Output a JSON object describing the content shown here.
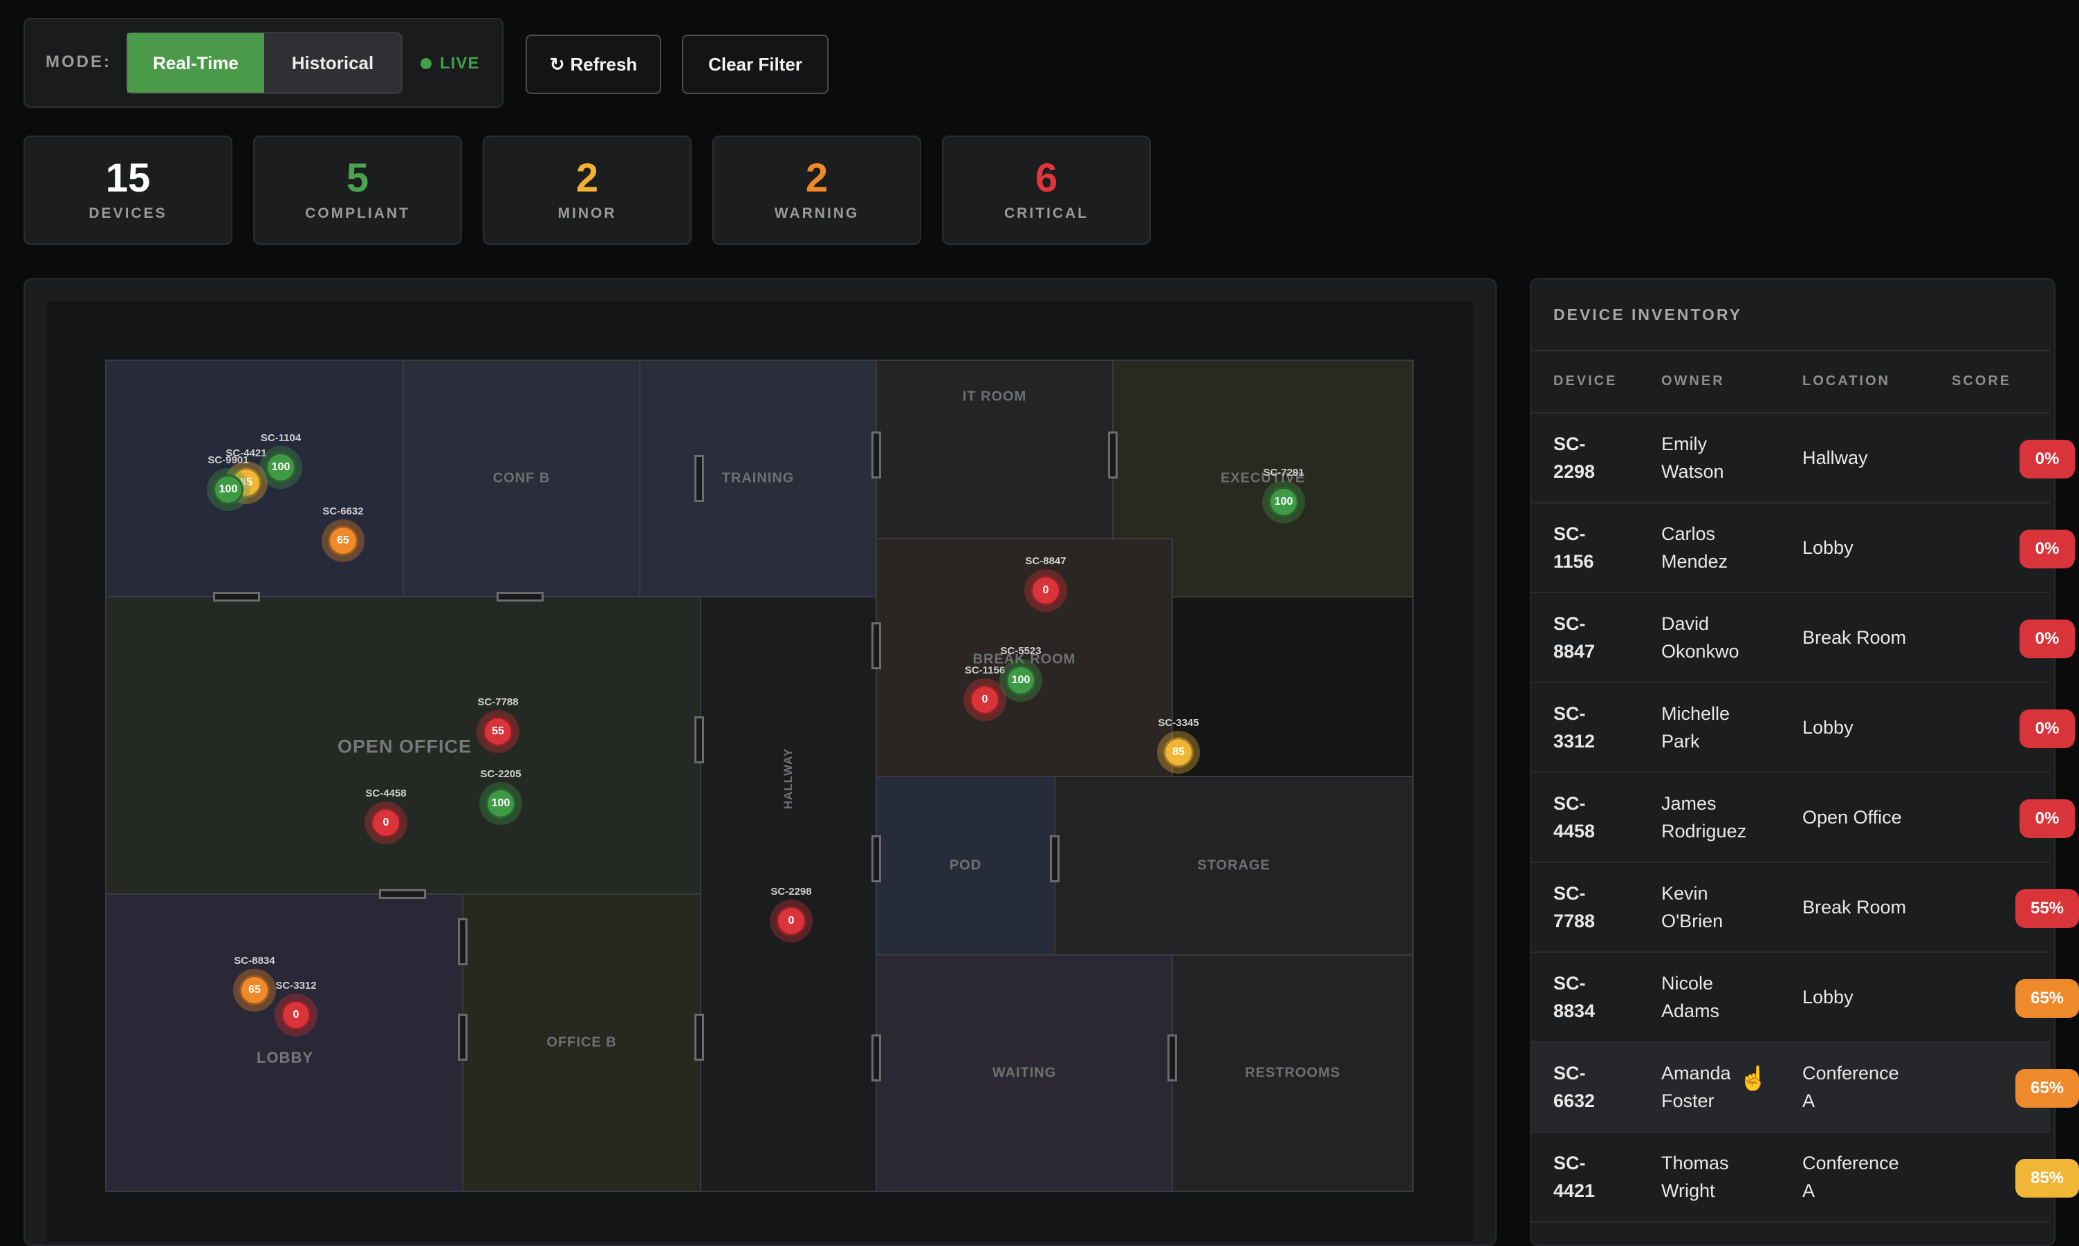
{
  "toolbar": {
    "mode_label": "MODE:",
    "realtime_label": "Real-Time",
    "historical_label": "Historical",
    "live_label": "LIVE",
    "refresh_label": "Refresh",
    "refresh_icon": "↻",
    "clear_label": "Clear Filter"
  },
  "stats": {
    "devices": {
      "value": "15",
      "label": "DEVICES",
      "color": "#ffffff"
    },
    "compliant": {
      "value": "5",
      "label": "COMPLIANT",
      "color": "#4aa34e"
    },
    "minor": {
      "value": "2",
      "label": "MINOR",
      "color": "#f2b233"
    },
    "warning": {
      "value": "2",
      "label": "WARNING",
      "color": "#ef8a2a"
    },
    "critical": {
      "value": "6",
      "label": "CRITICAL",
      "color": "#e2373a"
    }
  },
  "rooms": {
    "conf_b": "CONF B",
    "training": "TRAINING",
    "it_room": "IT ROOM",
    "executive": "EXECUTIVE",
    "break_room": "BREAK ROOM",
    "open_office": "OPEN OFFICE",
    "hallway": "HALLWAY",
    "pod": "POD",
    "storage": "STORAGE",
    "lobby": "LOBBY",
    "office_b": "OFFICE B",
    "waiting": "WAITING",
    "restrooms": "RESTROOMS"
  },
  "devices": [
    {
      "id": "SC-1104",
      "score": "100",
      "status": "compliant"
    },
    {
      "id": "SC-4421",
      "score": "85",
      "status": "minor"
    },
    {
      "id": "SC-9901",
      "score": "100",
      "status": "compliant"
    },
    {
      "id": "SC-6632",
      "score": "65",
      "status": "warning"
    },
    {
      "id": "SC-7291",
      "score": "100",
      "status": "compliant"
    },
    {
      "id": "SC-8847",
      "score": "0",
      "status": "critical"
    },
    {
      "id": "SC-5523",
      "score": "100",
      "status": "compliant"
    },
    {
      "id": "SC-1156",
      "score": "0",
      "status": "critical"
    },
    {
      "id": "SC-3345",
      "score": "85",
      "status": "minor"
    },
    {
      "id": "SC-7788",
      "score": "55",
      "status": "critical"
    },
    {
      "id": "SC-2205",
      "score": "100",
      "status": "compliant"
    },
    {
      "id": "SC-4458",
      "score": "0",
      "status": "critical"
    },
    {
      "id": "SC-2298",
      "score": "0",
      "status": "critical"
    },
    {
      "id": "SC-8834",
      "score": "65",
      "status": "warning"
    },
    {
      "id": "SC-3312",
      "score": "0",
      "status": "critical"
    }
  ],
  "status_colors": {
    "compliant": "#3f9a45",
    "minor": "#f1b636",
    "warning": "#ee8a2b",
    "critical": "#d8343a"
  },
  "inventory": {
    "title": "DEVICE INVENTORY",
    "columns": [
      "DEVICE",
      "OWNER",
      "LOCATION",
      "SCORE"
    ],
    "rows": [
      {
        "device_a": "SC-",
        "device_b": "2298",
        "owner_a": "Emily",
        "owner_b": "Watson",
        "loc_a": "Hallway",
        "loc_b": "",
        "score": "0%",
        "status": "critical"
      },
      {
        "device_a": "SC-",
        "device_b": "1156",
        "owner_a": "Carlos",
        "owner_b": "Mendez",
        "loc_a": "Lobby",
        "loc_b": "",
        "score": "0%",
        "status": "critical"
      },
      {
        "device_a": "SC-",
        "device_b": "8847",
        "owner_a": "David",
        "owner_b": "Okonkwo",
        "loc_a": "Break Room",
        "loc_b": "",
        "score": "0%",
        "status": "critical"
      },
      {
        "device_a": "SC-",
        "device_b": "3312",
        "owner_a": "Michelle",
        "owner_b": "Park",
        "loc_a": "Lobby",
        "loc_b": "",
        "score": "0%",
        "status": "critical"
      },
      {
        "device_a": "SC-",
        "device_b": "4458",
        "owner_a": "James",
        "owner_b": "Rodriguez",
        "loc_a": "Open Office",
        "loc_b": "",
        "score": "0%",
        "status": "critical"
      },
      {
        "device_a": "SC-",
        "device_b": "7788",
        "owner_a": "Kevin",
        "owner_b": "O'Brien",
        "loc_a": "Break Room",
        "loc_b": "",
        "score": "55%",
        "status": "critical"
      },
      {
        "device_a": "SC-",
        "device_b": "8834",
        "owner_a": "Nicole",
        "owner_b": "Adams",
        "loc_a": "Lobby",
        "loc_b": "",
        "score": "65%",
        "status": "warning"
      },
      {
        "device_a": "SC-",
        "device_b": "6632",
        "owner_a": "Amanda",
        "owner_b": "Foster",
        "loc_a": "Conference",
        "loc_b": "A",
        "score": "65%",
        "status": "warning"
      },
      {
        "device_a": "SC-",
        "device_b": "4421",
        "owner_a": "Thomas",
        "owner_b": "Wright",
        "loc_a": "Conference",
        "loc_b": "A",
        "score": "85%",
        "status": "minor"
      }
    ]
  }
}
